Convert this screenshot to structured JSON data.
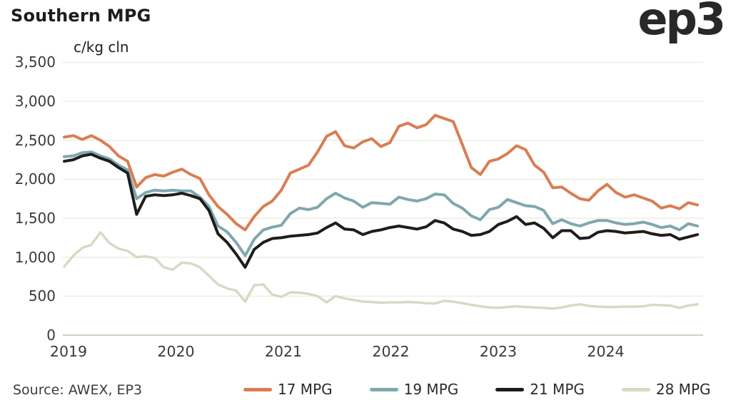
{
  "header": {
    "title": "Southern MPG",
    "unit_label": "c/kg cln",
    "logo_text": "ep3"
  },
  "source_text": "Source: AWEX, EP3",
  "colors": {
    "grid": "#edecdf",
    "axis_line": "#d2d0c1",
    "text_dark": "#1d1d1b",
    "text_axis": "#3a3a3a"
  },
  "chart_data": {
    "type": "line",
    "title": "Southern MPG",
    "ylabel": "c/kg cln",
    "ylim": [
      0,
      3500
    ],
    "y_ticks": [
      0,
      500,
      1000,
      1500,
      2000,
      2500,
      3000,
      3500
    ],
    "y_tick_labels": [
      "0",
      "500",
      "1,000",
      "1,500",
      "2,000",
      "2,500",
      "3,000",
      "3,500"
    ],
    "x_tick_labels": [
      "2019",
      "2020",
      "2021",
      "2022",
      "2023",
      "2024"
    ],
    "x_start": "2019-01",
    "x_end": "2024-11",
    "frequency": "monthly",
    "grid": "horizontal",
    "legend_position": "bottom",
    "series": [
      {
        "name": "17 MPG",
        "color": "#d87e54",
        "values": [
          2540,
          2560,
          2510,
          2560,
          2500,
          2420,
          2300,
          2230,
          1900,
          2020,
          2060,
          2040,
          2090,
          2130,
          2060,
          2010,
          1800,
          1650,
          1550,
          1430,
          1350,
          1520,
          1650,
          1720,
          1860,
          2080,
          2130,
          2180,
          2350,
          2550,
          2610,
          2430,
          2400,
          2480,
          2520,
          2420,
          2470,
          2680,
          2720,
          2660,
          2700,
          2820,
          2780,
          2740,
          2450,
          2150,
          2060,
          2230,
          2260,
          2330,
          2430,
          2380,
          2180,
          2090,
          1890,
          1900,
          1820,
          1750,
          1730,
          1850,
          1935,
          1830,
          1770,
          1800,
          1760,
          1720,
          1630,
          1660,
          1620,
          1700,
          1670
        ]
      },
      {
        "name": "19 MPG",
        "color": "#7fa7ae",
        "values": [
          2290,
          2300,
          2340,
          2350,
          2300,
          2260,
          2180,
          2120,
          1750,
          1830,
          1860,
          1850,
          1860,
          1850,
          1850,
          1770,
          1650,
          1400,
          1325,
          1190,
          1020,
          1230,
          1350,
          1385,
          1410,
          1560,
          1630,
          1610,
          1640,
          1750,
          1820,
          1760,
          1720,
          1640,
          1700,
          1690,
          1680,
          1770,
          1740,
          1720,
          1750,
          1810,
          1800,
          1690,
          1630,
          1530,
          1480,
          1610,
          1640,
          1740,
          1700,
          1660,
          1650,
          1600,
          1430,
          1480,
          1430,
          1400,
          1440,
          1470,
          1470,
          1440,
          1420,
          1430,
          1450,
          1420,
          1380,
          1400,
          1350,
          1430,
          1400
        ]
      },
      {
        "name": "21 MPG",
        "color": "#1d1d1b",
        "values": [
          2230,
          2250,
          2300,
          2320,
          2270,
          2230,
          2150,
          2080,
          1550,
          1780,
          1800,
          1790,
          1800,
          1820,
          1790,
          1750,
          1600,
          1300,
          1190,
          1040,
          870,
          1100,
          1190,
          1240,
          1250,
          1270,
          1280,
          1290,
          1310,
          1380,
          1440,
          1360,
          1350,
          1290,
          1330,
          1350,
          1380,
          1400,
          1380,
          1360,
          1390,
          1470,
          1440,
          1360,
          1330,
          1280,
          1290,
          1330,
          1420,
          1460,
          1520,
          1420,
          1440,
          1370,
          1250,
          1340,
          1340,
          1240,
          1250,
          1320,
          1340,
          1330,
          1310,
          1320,
          1330,
          1300,
          1280,
          1290,
          1230,
          1260,
          1290
        ]
      },
      {
        "name": "28 MPG",
        "color": "#d8d8c4",
        "values": [
          880,
          1020,
          1120,
          1160,
          1320,
          1180,
          1110,
          1080,
          1000,
          1010,
          990,
          870,
          840,
          930,
          920,
          870,
          760,
          650,
          600,
          570,
          430,
          640,
          650,
          520,
          490,
          550,
          545,
          530,
          500,
          420,
          500,
          470,
          450,
          430,
          425,
          415,
          420,
          420,
          425,
          420,
          410,
          405,
          440,
          430,
          410,
          390,
          370,
          355,
          350,
          360,
          370,
          360,
          355,
          350,
          340,
          355,
          380,
          395,
          375,
          365,
          360,
          360,
          365,
          365,
          370,
          390,
          385,
          380,
          350,
          380,
          395
        ]
      }
    ]
  }
}
